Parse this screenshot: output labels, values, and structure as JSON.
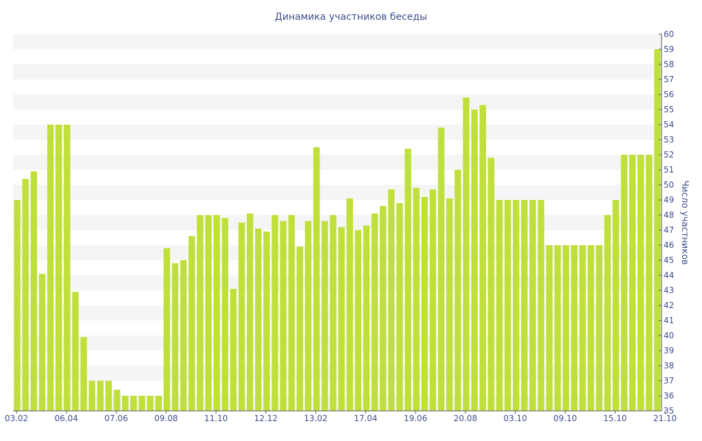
{
  "chart_data": {
    "type": "bar",
    "title": "Динамика участников беседы",
    "xlabel": "",
    "ylabel": "Число участников",
    "ylim": [
      35,
      60
    ],
    "y_axis_position": "right",
    "y_ticks": [
      35,
      36,
      37,
      38,
      39,
      40,
      41,
      42,
      43,
      44,
      45,
      46,
      47,
      48,
      49,
      50,
      51,
      52,
      53,
      54,
      55,
      56,
      57,
      58,
      59,
      60
    ],
    "x_tick_labels": [
      "03.02",
      "06.04",
      "07.06",
      "09.08",
      "11.10",
      "12.12",
      "13.02",
      "17.04",
      "19.06",
      "20.08",
      "03.10",
      "09.10",
      "15.10",
      "21.10"
    ],
    "grid": "alternating horizontal bands",
    "bar_color": "#bfe03a",
    "band_color": "#f5f5f5",
    "axis_text_color": "#3e4f8e",
    "values": [
      49,
      50.4,
      50.9,
      44.1,
      54,
      54,
      54,
      42.9,
      39.9,
      37,
      37,
      37,
      36.4,
      36,
      36,
      36,
      36,
      36,
      45.8,
      44.8,
      45,
      46.6,
      48,
      48,
      48,
      47.8,
      43.1,
      47.5,
      48.1,
      47.1,
      46.9,
      48,
      47.6,
      48,
      45.9,
      47.6,
      52.5,
      47.6,
      48,
      47.2,
      49.1,
      47,
      47.3,
      48.1,
      48.6,
      49.7,
      48.8,
      52.4,
      49.8,
      49.2,
      49.7,
      53.8,
      49.1,
      51,
      55.8,
      55,
      55.3,
      51.8,
      49,
      49,
      49,
      49,
      49,
      49,
      46,
      46,
      46,
      46,
      46,
      46,
      46,
      48,
      49,
      52,
      52,
      52,
      52,
      59
    ]
  }
}
